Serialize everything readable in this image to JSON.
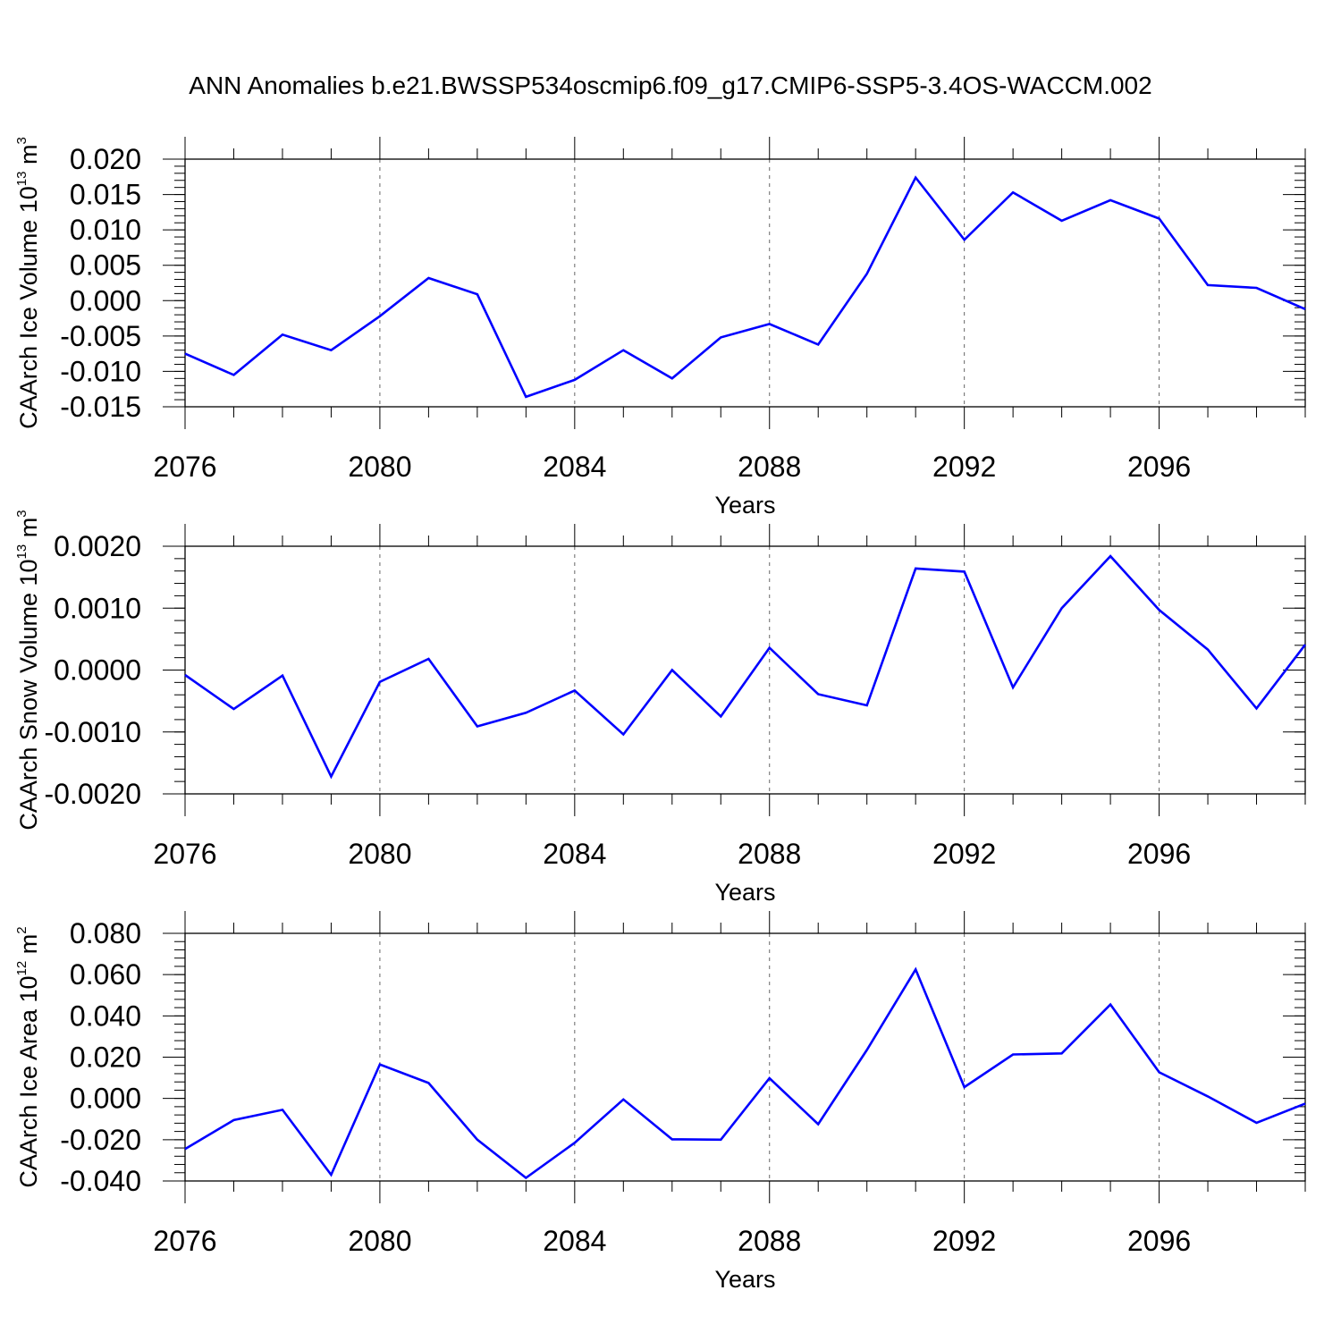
{
  "figure": {
    "title": "ANN Anomalies b.e21.BWSSP534oscmip6.f09_g17.CMIP6-SSP5-3.4OS-WACCM.002",
    "series_color": "#0000ff"
  },
  "chart_data": [
    {
      "type": "line",
      "xlabel": "Years",
      "ylabel": {
        "main": "CAArch Ice Volume 10",
        "exp": "13",
        "unit": "m",
        "unit_exp": "3"
      },
      "xlim": [
        2076,
        2099
      ],
      "ylim": [
        -0.015,
        0.02
      ],
      "x_ticks": [
        2076,
        2080,
        2084,
        2088,
        2092,
        2096
      ],
      "x_tick_labels": [
        "2076",
        "2080",
        "2084",
        "2088",
        "2092",
        "2096"
      ],
      "y_ticks": [
        -0.015,
        -0.01,
        -0.005,
        0.0,
        0.005,
        0.01,
        0.015,
        0.02
      ],
      "y_tick_labels": [
        "-0.015",
        "-0.010",
        "-0.005",
        "0.000",
        "0.005",
        "0.010",
        "0.015",
        "0.020"
      ],
      "y_minor_step": 0.001,
      "x": [
        2076,
        2077,
        2078,
        2079,
        2080,
        2081,
        2082,
        2083,
        2084,
        2085,
        2086,
        2087,
        2088,
        2089,
        2090,
        2091,
        2092,
        2093,
        2094,
        2095,
        2096,
        2097,
        2098,
        2099
      ],
      "values": [
        -0.0075,
        -0.0105,
        -0.0048,
        -0.007,
        -0.0022,
        0.0032,
        0.0009,
        -0.0136,
        -0.0112,
        -0.007,
        -0.011,
        -0.0052,
        -0.0033,
        -0.0062,
        0.0038,
        0.0174,
        0.0086,
        0.0153,
        0.0113,
        0.0142,
        0.0116,
        0.0022,
        0.0018,
        -0.0012
      ]
    },
    {
      "type": "line",
      "xlabel": "Years",
      "ylabel": {
        "main": "CAArch Snow Volume 10",
        "exp": "13",
        "unit": "m",
        "unit_exp": "3"
      },
      "xlim": [
        2076,
        2099
      ],
      "ylim": [
        -0.002,
        0.002
      ],
      "x_ticks": [
        2076,
        2080,
        2084,
        2088,
        2092,
        2096
      ],
      "x_tick_labels": [
        "2076",
        "2080",
        "2084",
        "2088",
        "2092",
        "2096"
      ],
      "y_ticks": [
        -0.002,
        -0.001,
        0.0,
        0.001,
        0.002
      ],
      "y_tick_labels": [
        "-0.0020",
        "-0.0010",
        "0.0000",
        "0.0010",
        "0.0020"
      ],
      "y_minor_step": 0.0002,
      "x": [
        2076,
        2077,
        2078,
        2079,
        2080,
        2081,
        2082,
        2083,
        2084,
        2085,
        2086,
        2087,
        2088,
        2089,
        2090,
        2091,
        2092,
        2093,
        2094,
        2095,
        2096,
        2097,
        2098,
        2099
      ],
      "values": [
        -8e-05,
        -0.00063,
        -9e-05,
        -0.00172,
        -0.00019,
        0.00018,
        -0.00091,
        -0.00069,
        -0.00033,
        -0.00104,
        0.0,
        -0.00075,
        0.00036,
        -0.00039,
        -0.00057,
        0.00164,
        0.00159,
        -0.00028,
        0.001,
        0.00184,
        0.00097,
        0.00033,
        -0.00062,
        0.00041
      ]
    },
    {
      "type": "line",
      "xlabel": "Years",
      "ylabel": {
        "main": "CAArch Ice Area 10",
        "exp": "12",
        "unit": "m",
        "unit_exp": "2"
      },
      "xlim": [
        2076,
        2099
      ],
      "ylim": [
        -0.04,
        0.08
      ],
      "x_ticks": [
        2076,
        2080,
        2084,
        2088,
        2092,
        2096
      ],
      "x_tick_labels": [
        "2076",
        "2080",
        "2084",
        "2088",
        "2092",
        "2096"
      ],
      "y_ticks": [
        -0.04,
        -0.02,
        0.0,
        0.02,
        0.04,
        0.06,
        0.08
      ],
      "y_tick_labels": [
        "-0.040",
        "-0.020",
        "0.000",
        "0.020",
        "0.040",
        "0.060",
        "0.080"
      ],
      "y_minor_step": 0.004,
      "x": [
        2076,
        2077,
        2078,
        2079,
        2080,
        2081,
        2082,
        2083,
        2084,
        2085,
        2086,
        2087,
        2088,
        2089,
        2090,
        2091,
        2092,
        2093,
        2094,
        2095,
        2096,
        2097,
        2098,
        2099
      ],
      "values": [
        -0.0245,
        -0.0105,
        -0.0055,
        -0.037,
        0.0165,
        0.0075,
        -0.02,
        -0.0385,
        -0.0215,
        -0.0005,
        -0.0198,
        -0.02,
        0.0098,
        -0.0125,
        0.0235,
        0.0625,
        0.0055,
        0.0213,
        0.0218,
        0.0455,
        0.0127,
        0.001,
        -0.0118,
        -0.0025
      ]
    }
  ]
}
